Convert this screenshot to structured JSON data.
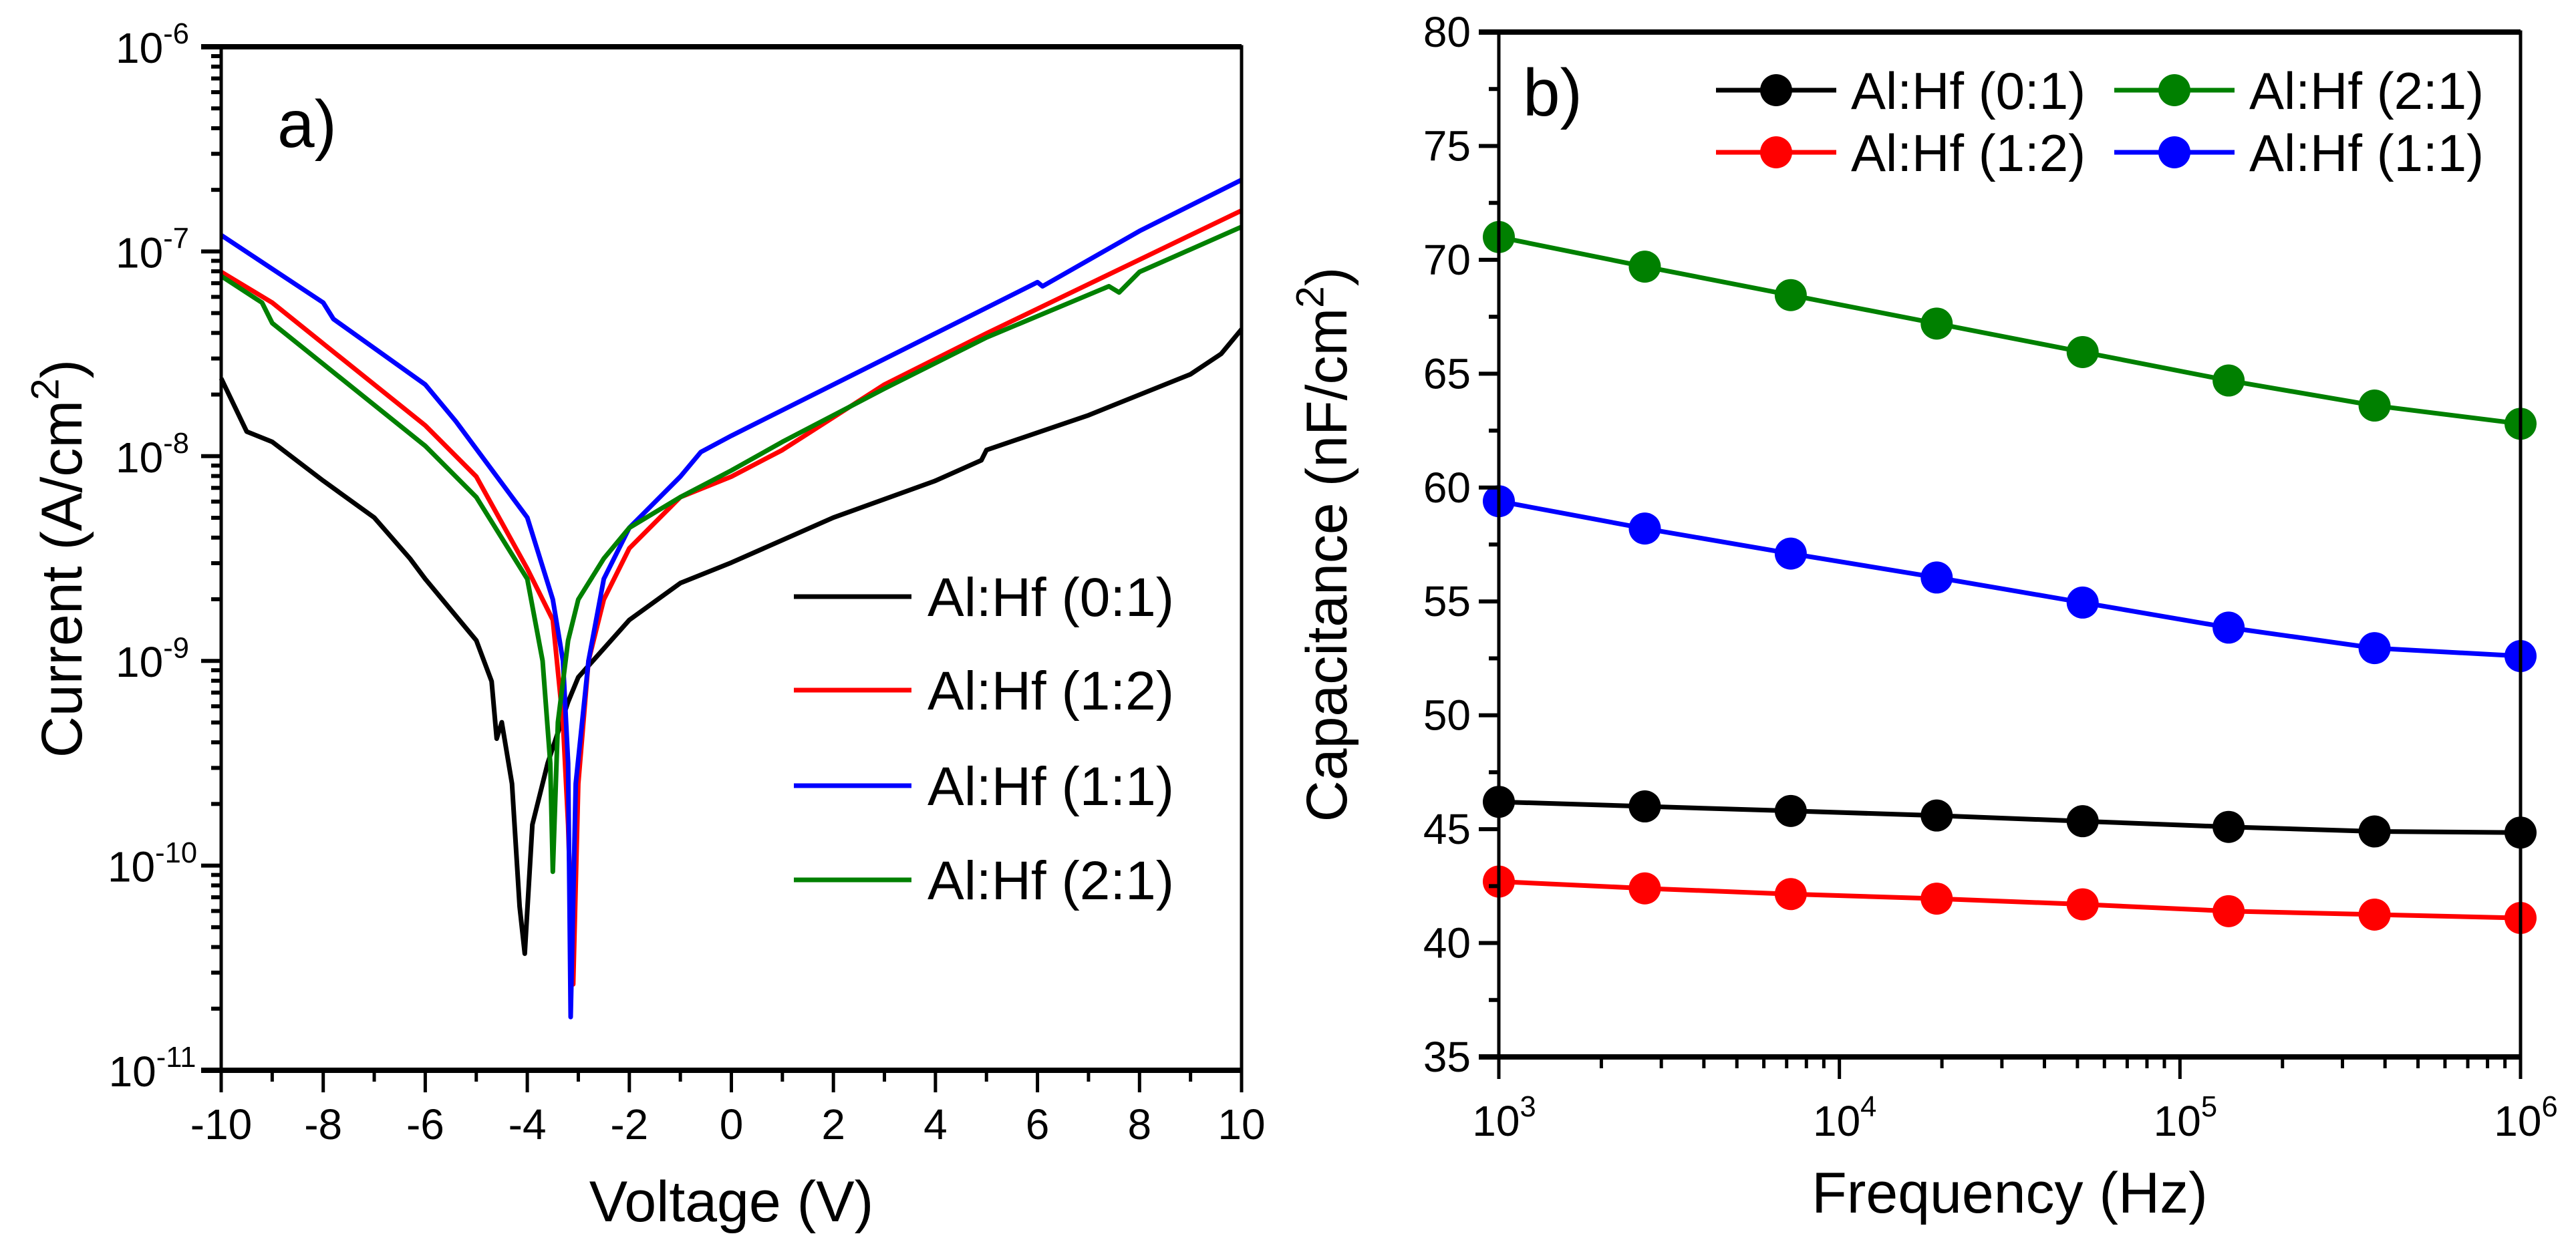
{
  "chart_data": [
    {
      "type": "line",
      "panel_label": "a)",
      "xlabel": "Voltage (V)",
      "ylabel": {
        "pre": "Current (A/cm",
        "sup": "2",
        "post": ")"
      },
      "xscale": "linear",
      "yscale": "log",
      "xlim": [
        -10,
        10
      ],
      "ylim": [
        1e-11,
        1e-06
      ],
      "xticks": [
        "-10",
        "-8",
        "-6",
        "-4",
        "-2",
        "0",
        "2",
        "4",
        "6",
        "8",
        "10"
      ],
      "xtick_values": [
        -10,
        -8,
        -6,
        -4,
        -2,
        0,
        2,
        4,
        6,
        8,
        10
      ],
      "yticks": [
        {
          "base": "10",
          "exp": "-11",
          "value": -11
        },
        {
          "base": "10",
          "exp": "-10",
          "value": -10
        },
        {
          "base": "10",
          "exp": "-9",
          "value": -9
        },
        {
          "base": "10",
          "exp": "-8",
          "value": -8
        },
        {
          "base": "10",
          "exp": "-7",
          "value": -7
        },
        {
          "base": "10",
          "exp": "-6",
          "value": -6
        }
      ],
      "legend_position": "center-right",
      "series": [
        {
          "name": "Al:Hf (0:1)",
          "color": "#000000",
          "x": [
            -10,
            -9.5,
            -9,
            -8,
            -7,
            -6.3,
            -6,
            -5.5,
            -5,
            -4.7,
            -4.6,
            -4.5,
            -4.3,
            -4.15,
            -4.05,
            -3.9,
            -3.6,
            -3.2,
            -3,
            -2,
            -1,
            0,
            2,
            4,
            4.9,
            5,
            7,
            9,
            9.6,
            10
          ],
          "log10_current": [
            -7.62,
            -7.88,
            -7.93,
            -8.12,
            -8.3,
            -8.5,
            -8.6,
            -8.75,
            -8.9,
            -9.1,
            -9.38,
            -9.3,
            -9.6,
            -10.2,
            -10.43,
            -9.8,
            -9.5,
            -9.2,
            -9.08,
            -8.8,
            -8.62,
            -8.52,
            -8.3,
            -8.12,
            -8.02,
            -7.97,
            -7.8,
            -7.6,
            -7.5,
            -7.38
          ]
        },
        {
          "name": "Al:Hf (1:2)",
          "color": "#ff0000",
          "x": [
            -10,
            -9,
            -8,
            -6,
            -5,
            -4,
            -3.5,
            -3.3,
            -3.2,
            -3.1,
            -3,
            -2.8,
            -2.5,
            -2,
            -1,
            0,
            1,
            3,
            5,
            7,
            10
          ],
          "log10_current": [
            -7.1,
            -7.25,
            -7.45,
            -7.85,
            -8.1,
            -8.55,
            -8.8,
            -9.3,
            -9.8,
            -10.58,
            -9.6,
            -9.0,
            -8.7,
            -8.45,
            -8.2,
            -8.1,
            -7.97,
            -7.65,
            -7.4,
            -7.16,
            -6.8
          ]
        },
        {
          "name": "Al:Hf (1:1)",
          "color": "#0000ff",
          "x": [
            -10,
            -8,
            -7.8,
            -6,
            -5.4,
            -4,
            -3.5,
            -3.3,
            -3.2,
            -3.15,
            -3.05,
            -2.8,
            -2.5,
            -2,
            -1,
            -0.6,
            0,
            2,
            4,
            6,
            6.1,
            8,
            10
          ],
          "log10_current": [
            -6.92,
            -7.25,
            -7.33,
            -7.65,
            -7.83,
            -8.3,
            -8.7,
            -9.0,
            -9.5,
            -10.74,
            -9.6,
            -9.0,
            -8.6,
            -8.35,
            -8.1,
            -7.98,
            -7.9,
            -7.65,
            -7.4,
            -7.15,
            -7.17,
            -6.9,
            -6.65
          ]
        },
        {
          "name": "Al:Hf (2:1)",
          "color": "#008000",
          "x": [
            -10,
            -9.2,
            -9,
            -8,
            -6,
            -5,
            -4,
            -3.7,
            -3.55,
            -3.5,
            -3.4,
            -3.2,
            -3,
            -2.5,
            -2,
            -1,
            0,
            0.5,
            1,
            3,
            5,
            7.4,
            7.6,
            8,
            10
          ],
          "log10_current": [
            -7.12,
            -7.25,
            -7.35,
            -7.55,
            -7.95,
            -8.2,
            -8.6,
            -9.0,
            -9.5,
            -10.03,
            -9.3,
            -8.9,
            -8.7,
            -8.5,
            -8.35,
            -8.2,
            -8.07,
            -8.0,
            -7.93,
            -7.67,
            -7.42,
            -7.17,
            -7.2,
            -7.1,
            -6.88
          ]
        }
      ]
    },
    {
      "type": "line",
      "panel_label": "b)",
      "xlabel": "Frequency (Hz)",
      "ylabel": {
        "pre": "Capacitance (nF/cm",
        "sup": "2",
        "post": ")"
      },
      "xscale": "log",
      "yscale": "linear",
      "xlim": [
        1000,
        1000000
      ],
      "ylim": [
        35,
        80
      ],
      "xticks": [
        {
          "base": "10",
          "exp": "3",
          "value": 3
        },
        {
          "base": "10",
          "exp": "4",
          "value": 4
        },
        {
          "base": "10",
          "exp": "5",
          "value": 5
        },
        {
          "base": "10",
          "exp": "6",
          "value": 6
        }
      ],
      "yticks": [
        "35",
        "40",
        "45",
        "50",
        "55",
        "60",
        "65",
        "70",
        "75",
        "80"
      ],
      "ytick_values": [
        35,
        40,
        45,
        50,
        55,
        60,
        65,
        70,
        75,
        80
      ],
      "legend_position": "top-right",
      "x": [
        1000,
        2683,
        7197,
        19307,
        51795,
        138950,
        372759,
        1000000
      ],
      "series": [
        {
          "name": "Al:Hf (0:1)",
          "color": "#000000",
          "values": [
            46.2,
            46.0,
            45.8,
            45.6,
            45.35,
            45.1,
            44.9,
            44.85
          ]
        },
        {
          "name": "Al:Hf (2:1)",
          "color": "#008000",
          "values": [
            71.0,
            69.7,
            68.45,
            67.2,
            65.95,
            64.7,
            63.6,
            62.8
          ]
        },
        {
          "name": "Al:Hf (1:2)",
          "color": "#ff0000",
          "values": [
            42.7,
            42.4,
            42.15,
            41.95,
            41.7,
            41.4,
            41.25,
            41.1
          ]
        },
        {
          "name": "Al:Hf (1:1)",
          "color": "#0000ff",
          "values": [
            59.4,
            58.2,
            57.1,
            56.05,
            54.95,
            53.85,
            52.95,
            52.6
          ]
        }
      ]
    }
  ]
}
